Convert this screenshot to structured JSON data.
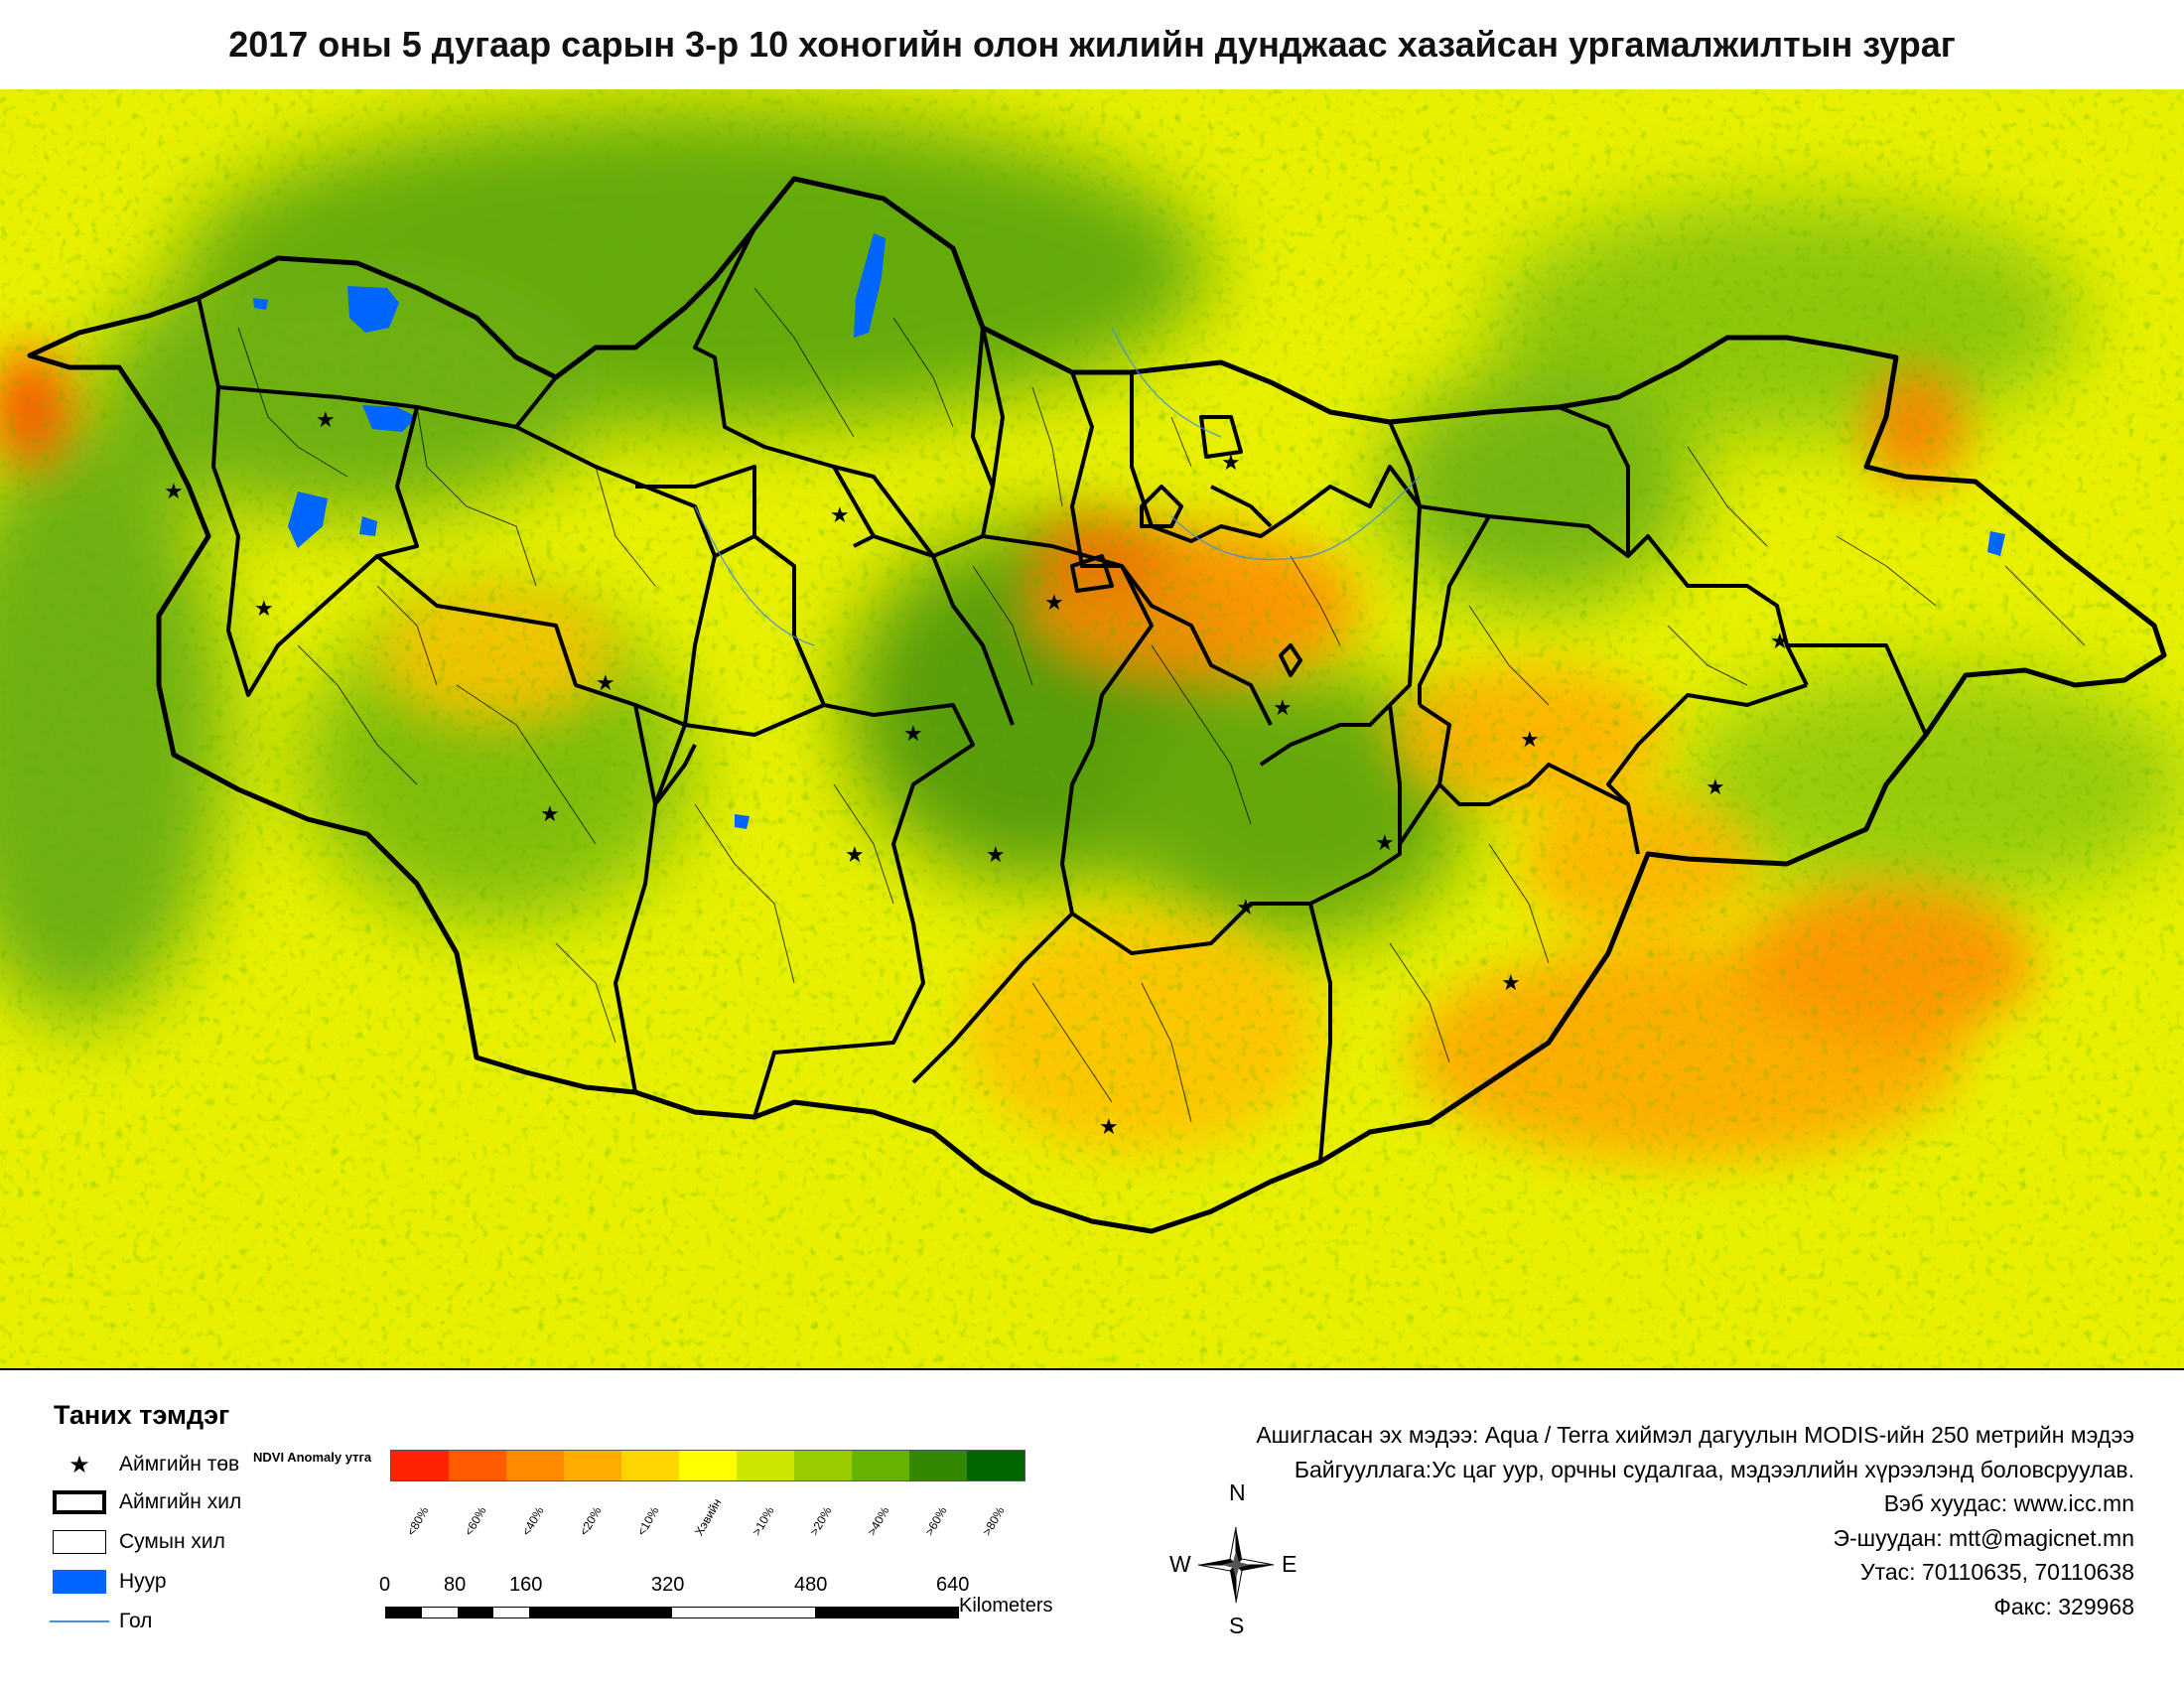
{
  "title": "2017 оны 5 дугаар сарын 3-р 10 хоногийн олон жилийн дунджаас хазайсан ургамалжилтын зураг",
  "legend": {
    "heading": "Таних тэмдэг",
    "items": [
      {
        "label": "Аймгийн төв",
        "symbol": "star-icon"
      },
      {
        "label": "Аймгийн хил",
        "symbol": "thick-boundary"
      },
      {
        "label": "Сумын хил",
        "symbol": "thin-boundary"
      },
      {
        "label": "Нуур",
        "symbol": "lake-fill",
        "color": "#0066ff"
      },
      {
        "label": "Гол",
        "symbol": "river-line",
        "color": "#4a8fd6"
      }
    ],
    "ndvi_caption": "NDVI Anomaly утга",
    "ramp": [
      {
        "label": "<80%",
        "color": "#ff2200"
      },
      {
        "label": "<60%",
        "color": "#ff5a00"
      },
      {
        "label": "<40%",
        "color": "#ff8a00"
      },
      {
        "label": "<20%",
        "color": "#ffab00"
      },
      {
        "label": "<10%",
        "color": "#ffd500"
      },
      {
        "label": "Хэвийн",
        "color": "#ffff00"
      },
      {
        "label": ">10%",
        "color": "#cce600"
      },
      {
        "label": ">20%",
        "color": "#99cc00"
      },
      {
        "label": ">40%",
        "color": "#66b200"
      },
      {
        "label": ">60%",
        "color": "#338800"
      },
      {
        "label": ">80%",
        "color": "#006600"
      }
    ]
  },
  "scale": {
    "ticks": [
      "0",
      "80",
      "160",
      "320",
      "480",
      "640"
    ],
    "unit": "Kilometers"
  },
  "compass": {
    "n": "N",
    "s": "S",
    "e": "E",
    "w": "W"
  },
  "info": {
    "source": "Ашигласан эх мэдээ: Aqua / Terra хиймэл дагуулын MODIS-ийн 250 метрийн мэдээ",
    "org": "Байгууллага:Ус цаг уур, орчны судалгаа, мэдээллийн хүрээлэнд боловсруулав.",
    "web": "Вэб хуудас: www.icc.mn",
    "email": "Э-шуудан: mtt@magicnet.mn",
    "phone": "Утас: 70110635, 70110638",
    "fax": "Факс: 329968"
  }
}
